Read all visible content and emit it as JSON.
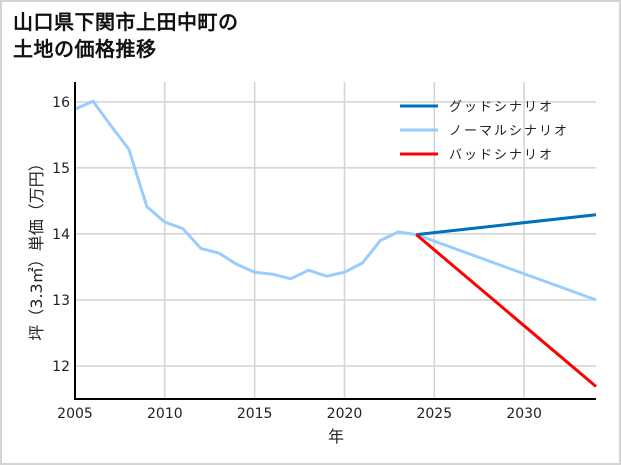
{
  "title": {
    "line1": "山口県下関市上田中町の",
    "line2": "土地の価格推移"
  },
  "colors": {
    "good": "#0070c0",
    "normal": "#99ccff",
    "bad": "#ff0000",
    "grid": "#d3d3d3",
    "axis": "#000000"
  },
  "chart_data": {
    "type": "line",
    "title": "山口県下関市上田中町の土地の価格推移",
    "xlabel": "年",
    "ylabel": "坪（3.3㎡）単価（万円）",
    "xlim": [
      2005,
      2034
    ],
    "ylim": [
      11.5,
      16.3
    ],
    "xticks": [
      2005,
      2010,
      2015,
      2020,
      2025,
      2030
    ],
    "yticks": [
      12,
      13,
      14,
      15,
      16
    ],
    "grid": true,
    "legend_position": "upper right",
    "legend": [
      "グッドシナリオ",
      "ノーマルシナリオ",
      "バッドシナリオ"
    ],
    "series": [
      {
        "name": "ノーマルシナリオ",
        "color": "#99ccff",
        "x": [
          2005,
          2006,
          2007,
          2008,
          2009,
          2010,
          2011,
          2012,
          2013,
          2014,
          2015,
          2016,
          2017,
          2018,
          2019,
          2020,
          2021,
          2022,
          2023,
          2024,
          2034
        ],
        "values": [
          15.89,
          16.01,
          15.64,
          15.28,
          14.41,
          14.18,
          14.08,
          13.78,
          13.71,
          13.54,
          13.42,
          13.39,
          13.32,
          13.45,
          13.36,
          13.42,
          13.56,
          13.9,
          14.03,
          13.99,
          13.0
        ]
      },
      {
        "name": "グッドシナリオ",
        "color": "#0070c0",
        "x": [
          2024,
          2034
        ],
        "values": [
          13.99,
          14.29
        ]
      },
      {
        "name": "バッドシナリオ",
        "color": "#ff0000",
        "x": [
          2024,
          2034
        ],
        "values": [
          13.99,
          11.69
        ]
      }
    ]
  }
}
